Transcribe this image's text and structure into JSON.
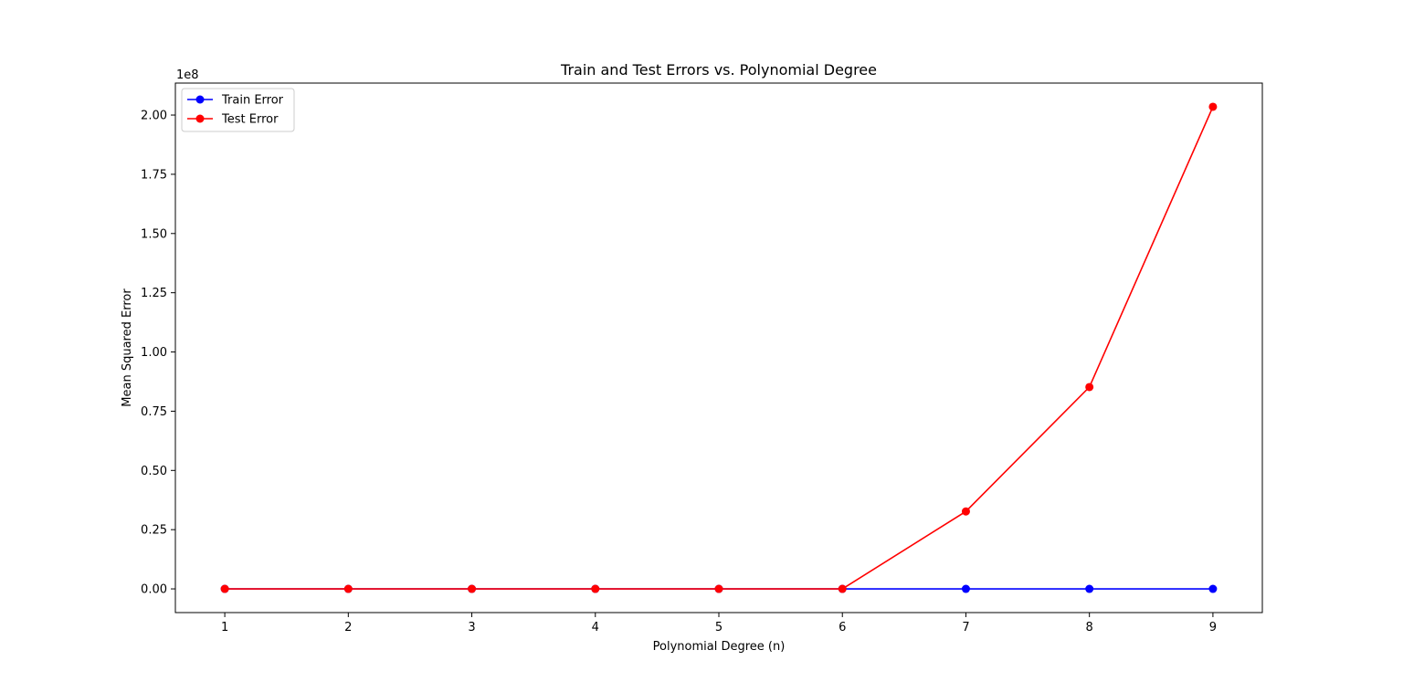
{
  "chart_data": {
    "type": "line",
    "title": "Train and Test Errors vs. Polynomial Degree",
    "xlabel": "Polynomial Degree (n)",
    "ylabel": "Mean Squared Error",
    "y_offset_label": "1e8",
    "x": [
      1,
      2,
      3,
      4,
      5,
      6,
      7,
      8,
      9
    ],
    "xlim": [
      0.6,
      9.4
    ],
    "ylim": [
      -0.1,
      2.135
    ],
    "y_scale_note": "values in units of 1e8",
    "xticks": [
      1,
      2,
      3,
      4,
      5,
      6,
      7,
      8,
      9
    ],
    "xtick_labels": [
      "1",
      "2",
      "3",
      "4",
      "5",
      "6",
      "7",
      "8",
      "9"
    ],
    "yticks": [
      0.0,
      0.25,
      0.5,
      0.75,
      1.0,
      1.25,
      1.5,
      1.75,
      2.0
    ],
    "ytick_labels": [
      "0.00",
      "0.25",
      "0.50",
      "0.75",
      "1.00",
      "1.25",
      "1.50",
      "1.75",
      "2.00"
    ],
    "grid": false,
    "legend_position": "top-left",
    "series": [
      {
        "name": "Train Error",
        "color": "#0000ff",
        "marker": "circle",
        "values": [
          0,
          0,
          0,
          0,
          0,
          0,
          0,
          0,
          0
        ]
      },
      {
        "name": "Test Error",
        "color": "#ff0000",
        "marker": "circle",
        "values": [
          0.0,
          0.0,
          0.0,
          0.0,
          0.0,
          0.0,
          0.327,
          0.852,
          2.035
        ]
      }
    ]
  }
}
